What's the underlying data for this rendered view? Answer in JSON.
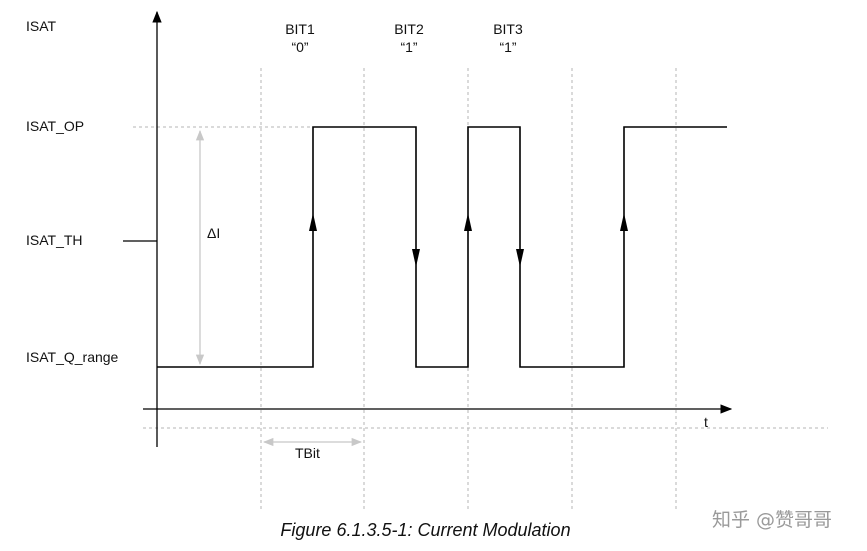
{
  "signal_levels": {
    "isat": "ISAT",
    "isat_op": "ISAT_OP",
    "isat_th": "ISAT_TH",
    "isat_q_range": "ISAT_Q_range"
  },
  "bits": [
    {
      "name": "BIT1",
      "value": "“0”"
    },
    {
      "name": "BIT2",
      "value": "“1”"
    },
    {
      "name": "BIT3",
      "value": "“1”"
    }
  ],
  "annotations": {
    "delta_i": "ΔI",
    "tbit": "TBit",
    "time_axis": "t"
  },
  "caption": "Figure 6.1.3.5-1: Current Modulation",
  "watermark": "知乎 @赞哥哥",
  "colors": {
    "signal": "#000000",
    "guide": "#b5b5b5",
    "annotation": "#c8c8c8"
  }
}
